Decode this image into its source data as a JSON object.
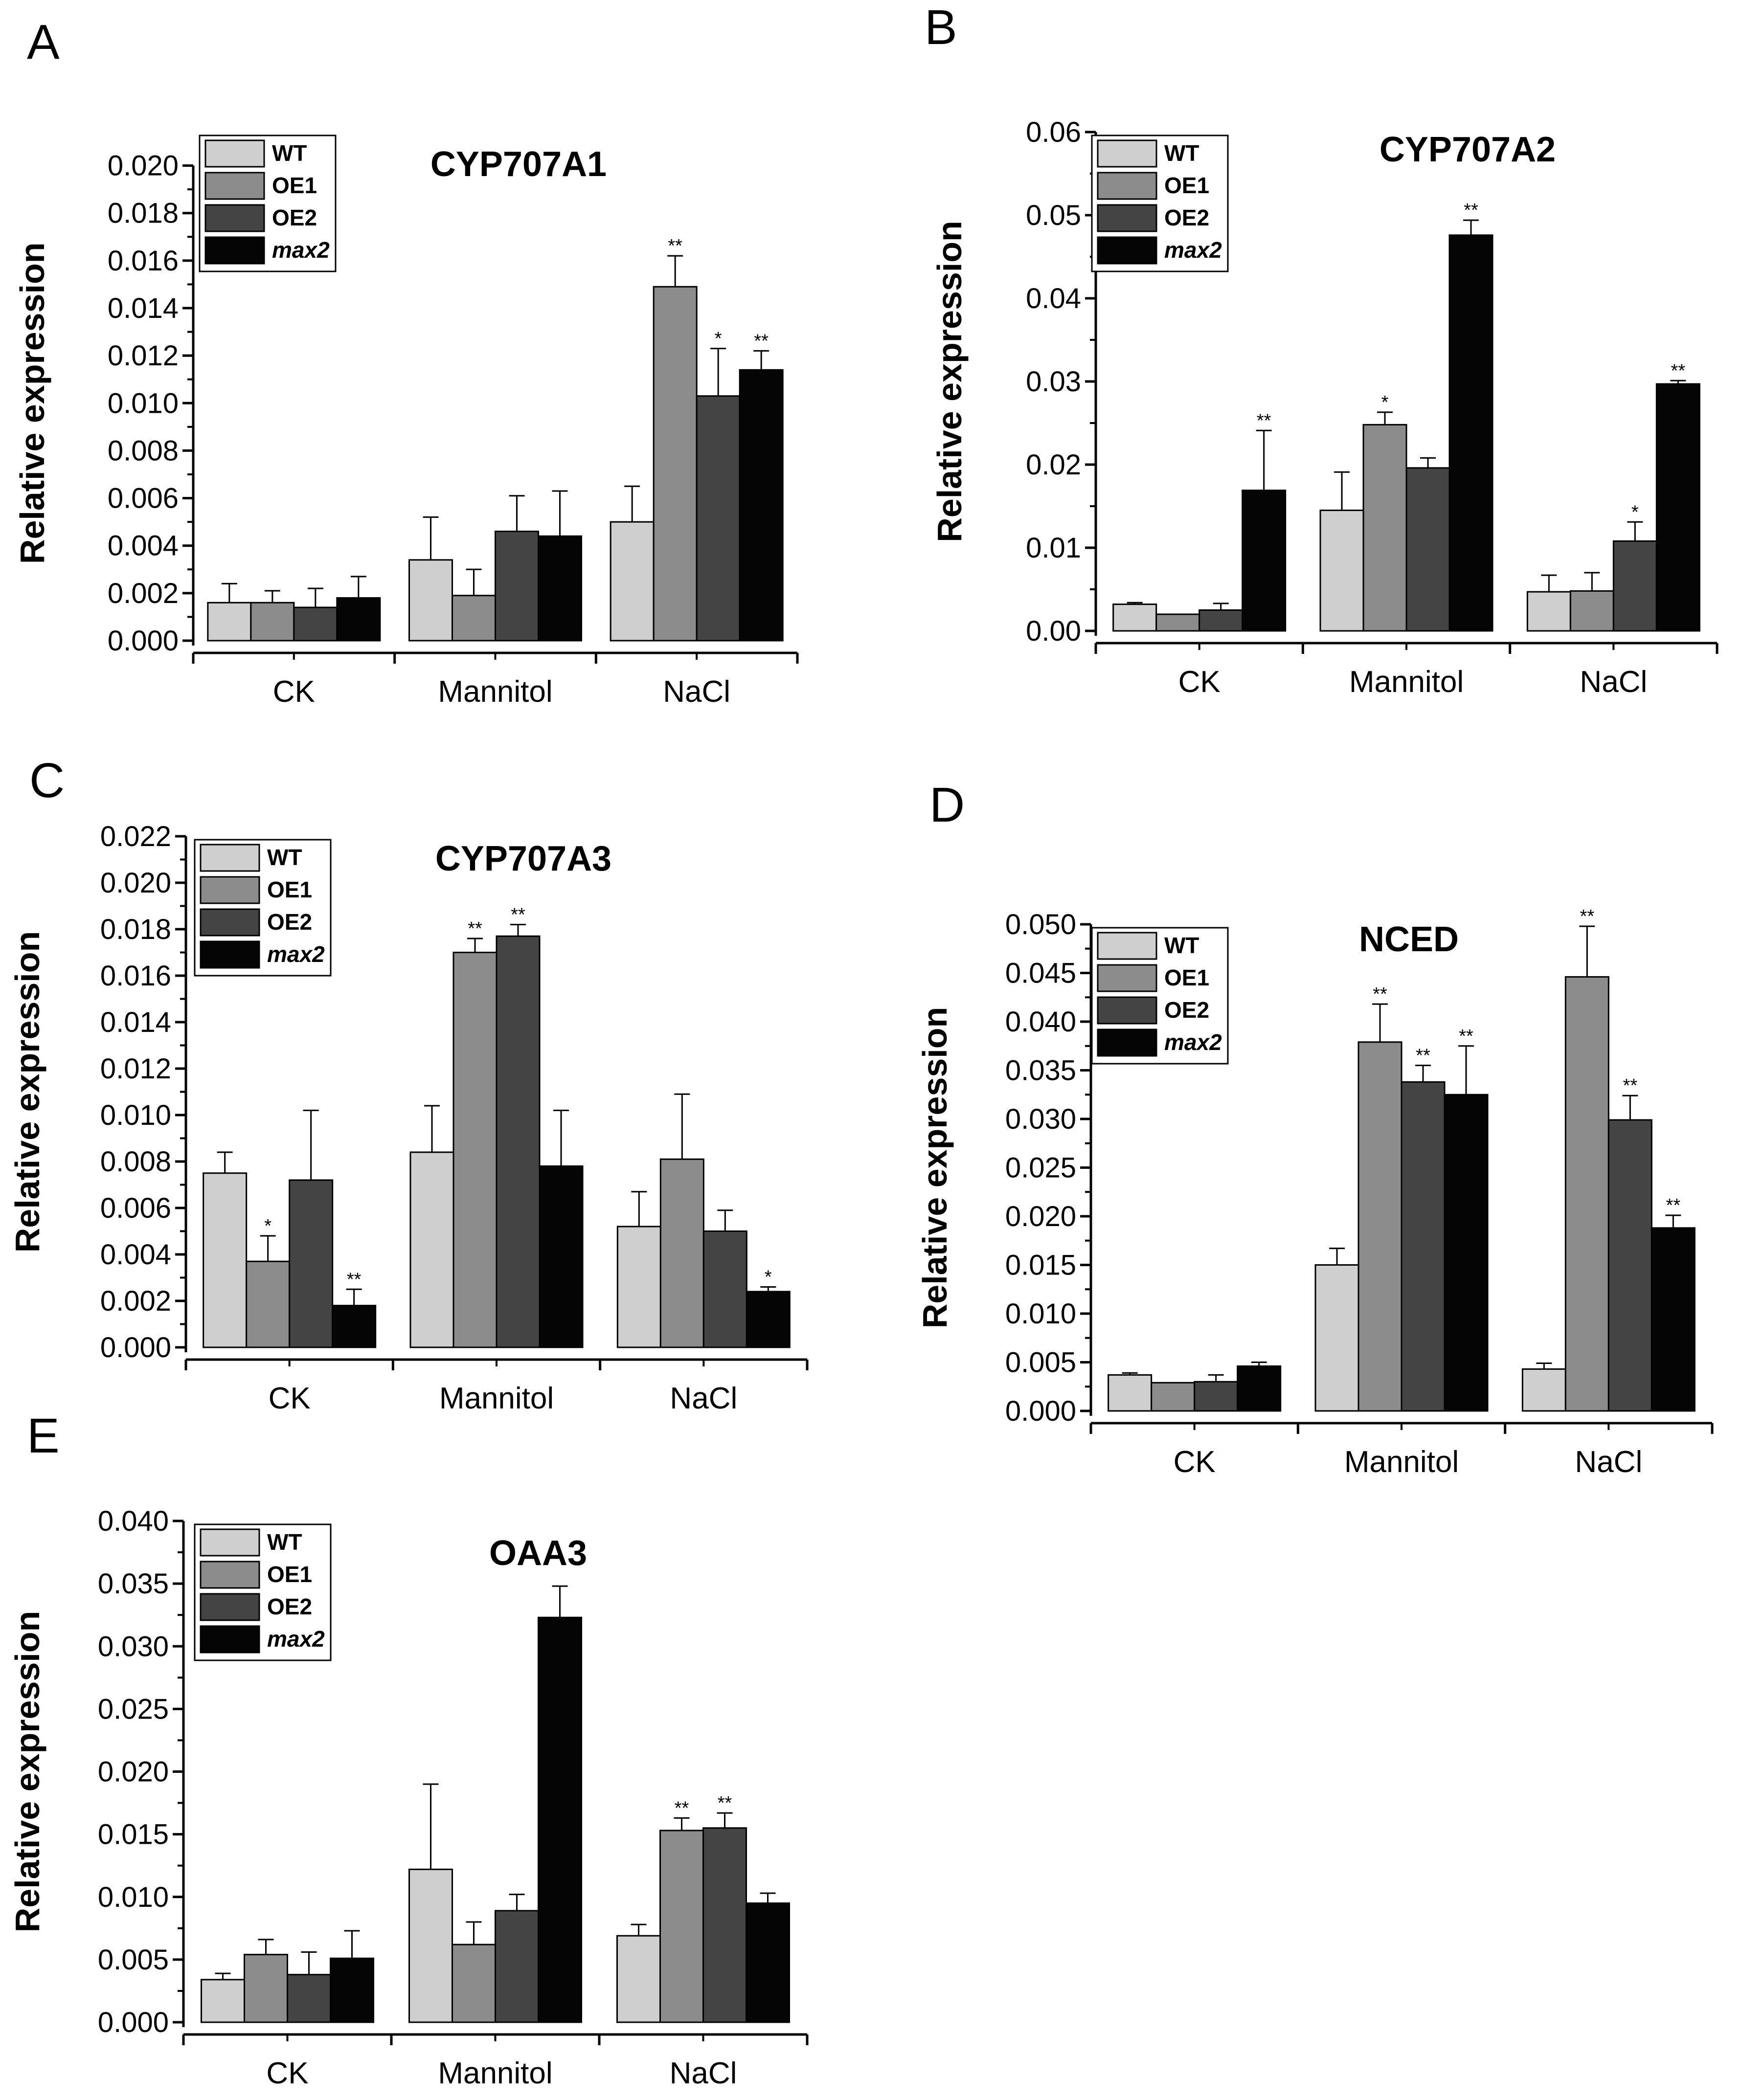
{
  "figure": {
    "legend_labels": [
      "WT",
      "OE1",
      "OE2",
      "max2"
    ],
    "series_colors": [
      "#cfcfcf",
      "#8c8c8c",
      "#444444",
      "#050505"
    ],
    "axis_color": "#000000",
    "ylabel": "Relative expression"
  },
  "chart_data": [
    {
      "type": "bar",
      "panel": "A",
      "title": "CYP707A1",
      "xlabel": "",
      "ylabel": "Relative expression",
      "categories": [
        "CK",
        "Mannitol",
        "NaCl"
      ],
      "ylim": [
        0,
        0.021
      ],
      "yticks": [
        "0.000",
        "0.002",
        "0.004",
        "0.006",
        "0.008",
        "0.010",
        "0.012",
        "0.014",
        "0.016",
        "0.018",
        "0.020"
      ],
      "series": [
        {
          "name": "WT",
          "values": [
            0.0016,
            0.0034,
            0.005
          ],
          "errors": [
            0.0008,
            0.0018,
            0.0015
          ],
          "sig": [
            "",
            "",
            ""
          ]
        },
        {
          "name": "OE1",
          "values": [
            0.0016,
            0.0019,
            0.0149
          ],
          "errors": [
            0.0005,
            0.0011,
            0.0013
          ],
          "sig": [
            "",
            "",
            "**"
          ]
        },
        {
          "name": "OE2",
          "values": [
            0.0014,
            0.0046,
            0.0103
          ],
          "errors": [
            0.0008,
            0.0015,
            0.002
          ],
          "sig": [
            "",
            "",
            "*"
          ]
        },
        {
          "name": "max2",
          "values": [
            0.0018,
            0.0044,
            0.0114
          ],
          "errors": [
            0.0009,
            0.0019,
            0.0008
          ],
          "sig": [
            "",
            "",
            "**"
          ]
        }
      ]
    },
    {
      "type": "bar",
      "panel": "B",
      "title": "CYP707A2",
      "xlabel": "",
      "ylabel": "Relative expression",
      "categories": [
        "CK",
        "Mannitol",
        "NaCl"
      ],
      "ylim": [
        0,
        0.06
      ],
      "yticks": [
        "0.00",
        "0.01",
        "0.02",
        "0.03",
        "0.04",
        "0.05",
        "0.06"
      ],
      "series": [
        {
          "name": "WT",
          "values": [
            0.0032,
            0.0145,
            0.0047
          ],
          "errors": [
            0.0002,
            0.0046,
            0.002
          ],
          "sig": [
            "",
            "",
            ""
          ]
        },
        {
          "name": "OE1",
          "values": [
            0.002,
            0.0248,
            0.0048
          ],
          "errors": [
            0,
            0.0015,
            0.0022
          ],
          "sig": [
            "",
            "*",
            ""
          ]
        },
        {
          "name": "OE2",
          "values": [
            0.0025,
            0.0196,
            0.0108
          ],
          "errors": [
            0.0008,
            0.0012,
            0.0023
          ],
          "sig": [
            "",
            "",
            "*"
          ]
        },
        {
          "name": "max2",
          "values": [
            0.0169,
            0.0476,
            0.0297
          ],
          "errors": [
            0.0072,
            0.0018,
            0.0004
          ],
          "sig": [
            "**",
            "**",
            "**"
          ]
        }
      ]
    },
    {
      "type": "bar",
      "panel": "C",
      "title": "CYP707A3",
      "xlabel": "",
      "ylabel": "Relative expression",
      "categories": [
        "CK",
        "Mannitol",
        "NaCl"
      ],
      "ylim": [
        0,
        0.022
      ],
      "yticks": [
        "0.000",
        "0.002",
        "0.004",
        "0.006",
        "0.008",
        "0.010",
        "0.012",
        "0.014",
        "0.016",
        "0.018",
        "0.020",
        "0.022"
      ],
      "series": [
        {
          "name": "WT",
          "values": [
            0.0075,
            0.0084,
            0.0052
          ],
          "errors": [
            0.0009,
            0.002,
            0.0015
          ],
          "sig": [
            "",
            "",
            ""
          ]
        },
        {
          "name": "OE1",
          "values": [
            0.0037,
            0.017,
            0.0081
          ],
          "errors": [
            0.0011,
            0.0006,
            0.0028
          ],
          "sig": [
            "*",
            "**",
            ""
          ]
        },
        {
          "name": "OE2",
          "values": [
            0.0072,
            0.0177,
            0.005
          ],
          "errors": [
            0.003,
            0.0005,
            0.0009
          ],
          "sig": [
            "",
            "**",
            ""
          ]
        },
        {
          "name": "max2",
          "values": [
            0.0018,
            0.0078,
            0.0024
          ],
          "errors": [
            0.0007,
            0.0024,
            0.0002
          ],
          "sig": [
            "**",
            "",
            "*"
          ]
        }
      ]
    },
    {
      "type": "bar",
      "panel": "D",
      "title": "NCED",
      "xlabel": "",
      "ylabel": "Relative expression",
      "categories": [
        "CK",
        "Mannitol",
        "NaCl"
      ],
      "ylim": [
        0,
        0.05
      ],
      "yticks": [
        "0.000",
        "0.005",
        "0.010",
        "0.015",
        "0.020",
        "0.025",
        "0.030",
        "0.035",
        "0.040",
        "0.045",
        "0.050"
      ],
      "series": [
        {
          "name": "WT",
          "values": [
            0.0037,
            0.015,
            0.0043
          ],
          "errors": [
            0.0002,
            0.0017,
            0.0006
          ],
          "sig": [
            "",
            "",
            ""
          ]
        },
        {
          "name": "OE1",
          "values": [
            0.0029,
            0.0379,
            0.0446
          ],
          "errors": [
            0,
            0.0039,
            0.0052
          ],
          "sig": [
            "",
            "**",
            "**"
          ]
        },
        {
          "name": "OE2",
          "values": [
            0.003,
            0.0338,
            0.0299
          ],
          "errors": [
            0.0007,
            0.0017,
            0.0025
          ],
          "sig": [
            "",
            "**",
            "**"
          ]
        },
        {
          "name": "max2",
          "values": [
            0.0046,
            0.0325,
            0.0188
          ],
          "errors": [
            0.0004,
            0.005,
            0.0013
          ],
          "sig": [
            "",
            "**",
            "**"
          ]
        }
      ]
    },
    {
      "type": "bar",
      "panel": "E",
      "title": "OAA3",
      "xlabel": "",
      "ylabel": "Relative expression",
      "categories": [
        "CK",
        "Mannitol",
        "NaCl"
      ],
      "ylim": [
        0,
        0.04
      ],
      "yticks": [
        "0.000",
        "0.005",
        "0.010",
        "0.015",
        "0.020",
        "0.025",
        "0.030",
        "0.035",
        "0.040"
      ],
      "series": [
        {
          "name": "WT",
          "values": [
            0.0034,
            0.0122,
            0.0069
          ],
          "errors": [
            0.0005,
            0.0068,
            0.0009
          ],
          "sig": [
            "",
            "",
            ""
          ]
        },
        {
          "name": "OE1",
          "values": [
            0.0054,
            0.0062,
            0.0153
          ],
          "errors": [
            0.0012,
            0.0018,
            0.001
          ],
          "sig": [
            "",
            "",
            "**"
          ]
        },
        {
          "name": "OE2",
          "values": [
            0.0038,
            0.0089,
            0.0155
          ],
          "errors": [
            0.0018,
            0.0013,
            0.0012
          ],
          "sig": [
            "",
            "",
            "**"
          ]
        },
        {
          "name": "max2",
          "values": [
            0.0051,
            0.0323,
            0.0095
          ],
          "errors": [
            0.0022,
            0.0025,
            0.0008
          ],
          "sig": [
            "",
            "",
            ""
          ]
        }
      ]
    }
  ]
}
